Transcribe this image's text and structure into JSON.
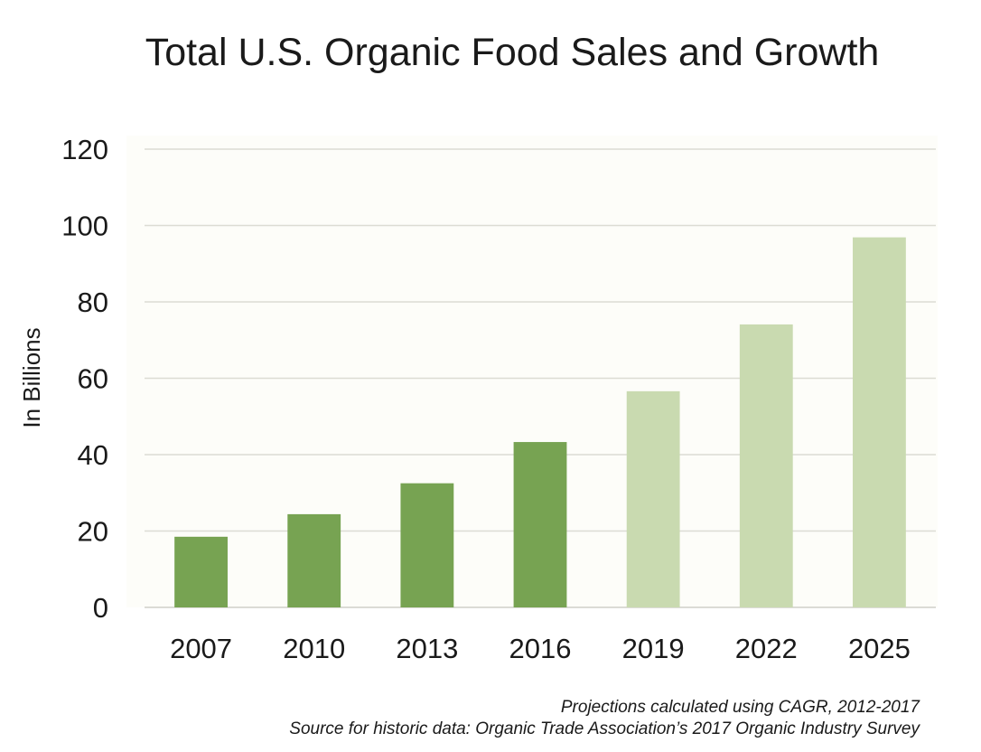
{
  "chart_data": {
    "type": "bar",
    "title": "Total U.S. Organic Food Sales and Growth",
    "xlabel": "",
    "ylabel": "In Billions",
    "categories": [
      "2007",
      "2010",
      "2013",
      "2016",
      "2019",
      "2022",
      "2025"
    ],
    "values": [
      18.5,
      24.4,
      32.5,
      43.3,
      56.6,
      74.1,
      96.9
    ],
    "bar_kinds": [
      "historic",
      "historic",
      "historic",
      "historic",
      "projected",
      "projected",
      "projected"
    ],
    "ylim": [
      0,
      120
    ],
    "yticks": [
      "0",
      "20",
      "40",
      "60",
      "80",
      "100",
      "120"
    ],
    "grid": true,
    "colors": {
      "historic": "#77a352",
      "projected": "#c9dab0",
      "plot_background": "#fdfdf9"
    },
    "footnotes": [
      "Projections calculated using CAGR, 2012-2017",
      "Source for historic data: Organic Trade Association’s 2017 Organic Industry Survey"
    ]
  }
}
